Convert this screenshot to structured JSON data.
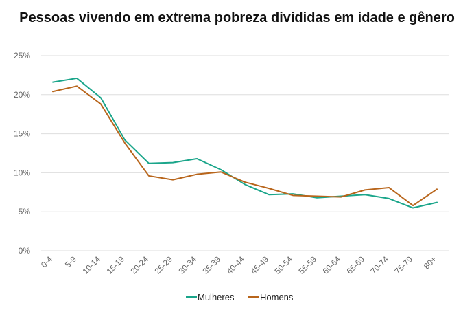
{
  "chart_data": {
    "type": "line",
    "title": "Pessoas vivendo em extrema pobreza divididas em idade e gênero",
    "xlabel": "",
    "ylabel": "",
    "ylim": [
      0,
      25
    ],
    "yticks": [
      "0%",
      "5%",
      "10%",
      "15%",
      "20%",
      "25%"
    ],
    "y_unit": "%",
    "grid": true,
    "legend_position": "bottom",
    "categories": [
      "0-4",
      "5-9",
      "10-14",
      "15-19",
      "20-24",
      "25-29",
      "30-34",
      "35-39",
      "40-44",
      "45-49",
      "50-54",
      "55-59",
      "60-64",
      "65-69",
      "70-74",
      "75-79",
      "80+"
    ],
    "series": [
      {
        "name": "Mulheres",
        "color": "#1aa58a",
        "values": [
          21.6,
          22.1,
          19.6,
          14.2,
          11.2,
          11.3,
          11.8,
          10.4,
          8.5,
          7.2,
          7.3,
          6.8,
          7.0,
          7.2,
          6.7,
          5.5,
          6.2
        ]
      },
      {
        "name": "Homens",
        "color": "#b8651b",
        "values": [
          20.4,
          21.1,
          18.8,
          13.8,
          9.6,
          9.1,
          9.8,
          10.1,
          8.8,
          8.0,
          7.1,
          7.0,
          6.9,
          7.8,
          8.1,
          5.8,
          7.9
        ]
      }
    ]
  }
}
